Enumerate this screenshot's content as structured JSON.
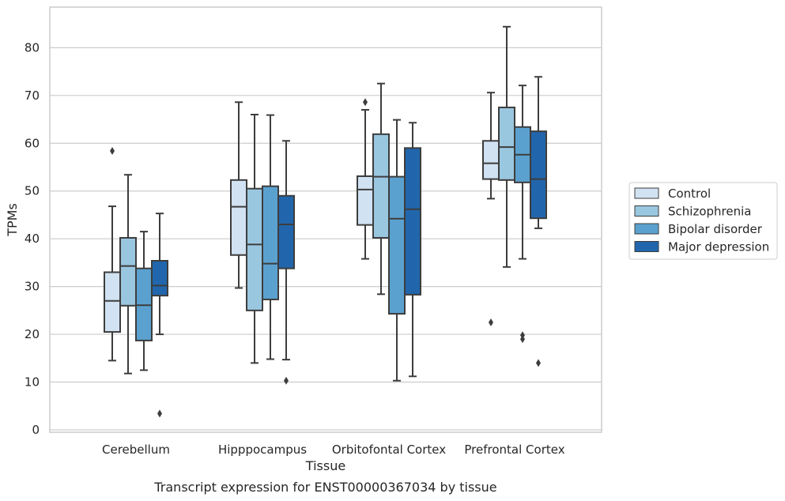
{
  "chart_data": {
    "type": "box",
    "title": "",
    "caption": "Transcript expression for ENST00000367034 by tissue",
    "xlabel": "Tissue",
    "ylabel": "TPMs",
    "ylim": [
      -0.5,
      88.5
    ],
    "yticks": [
      0,
      10,
      20,
      30,
      40,
      50,
      60,
      70,
      80
    ],
    "grid": "horizontal",
    "legend_position": "right",
    "categories": [
      "Cerebellum",
      "Hipppocampus",
      "Orbitofontal Cortex",
      "Prefrontal Cortex"
    ],
    "series": [
      {
        "name": "Control",
        "color": "#d1e2f2",
        "boxes": [
          {
            "whislo": 14.5,
            "q1": 20.5,
            "med": 27.0,
            "q3": 33.0,
            "whishi": 46.8,
            "fliers": [
              58.4
            ]
          },
          {
            "whislo": 29.7,
            "q1": 36.6,
            "med": 46.7,
            "q3": 52.3,
            "whishi": 68.6,
            "fliers": []
          },
          {
            "whislo": 35.8,
            "q1": 42.9,
            "med": 50.3,
            "q3": 53.1,
            "whishi": 67.0,
            "fliers": [
              68.6
            ]
          },
          {
            "whislo": 48.4,
            "q1": 52.5,
            "med": 55.8,
            "q3": 60.5,
            "whishi": 70.6,
            "fliers": [
              22.5
            ]
          }
        ]
      },
      {
        "name": "Schizophrenia",
        "color": "#9ac7e0",
        "boxes": [
          {
            "whislo": 11.8,
            "q1": 26.0,
            "med": 34.3,
            "q3": 40.2,
            "whishi": 53.4,
            "fliers": []
          },
          {
            "whislo": 14.0,
            "q1": 25.0,
            "med": 38.8,
            "q3": 50.5,
            "whishi": 66.0,
            "fliers": []
          },
          {
            "whislo": 28.4,
            "q1": 40.2,
            "med": 53.0,
            "q3": 61.9,
            "whishi": 72.5,
            "fliers": []
          },
          {
            "whislo": 34.1,
            "q1": 52.3,
            "med": 59.2,
            "q3": 67.5,
            "whishi": 84.4,
            "fliers": []
          }
        ]
      },
      {
        "name": "Bipolar disorder",
        "color": "#5ba1cf",
        "boxes": [
          {
            "whislo": 12.5,
            "q1": 18.7,
            "med": 26.1,
            "q3": 33.8,
            "whishi": 41.5,
            "fliers": []
          },
          {
            "whislo": 14.8,
            "q1": 27.3,
            "med": 34.8,
            "q3": 51.0,
            "whishi": 65.9,
            "fliers": []
          },
          {
            "whislo": 10.3,
            "q1": 24.3,
            "med": 44.2,
            "q3": 53.0,
            "whishi": 64.9,
            "fliers": []
          },
          {
            "whislo": 35.8,
            "q1": 51.8,
            "med": 57.6,
            "q3": 63.4,
            "whishi": 72.1,
            "fliers": [
              19.8,
              19.0
            ]
          }
        ]
      },
      {
        "name": "Major depression",
        "color": "#2166ac",
        "boxes": [
          {
            "whislo": 20.0,
            "q1": 28.1,
            "med": 30.2,
            "q3": 35.4,
            "whishi": 45.3,
            "fliers": [
              3.4
            ]
          },
          {
            "whislo": 14.7,
            "q1": 33.8,
            "med": 43.0,
            "q3": 49.0,
            "whishi": 60.5,
            "fliers": [
              10.3
            ]
          },
          {
            "whislo": 11.2,
            "q1": 28.3,
            "med": 46.2,
            "q3": 59.0,
            "whishi": 64.3,
            "fliers": []
          },
          {
            "whislo": 42.2,
            "q1": 44.3,
            "med": 52.5,
            "q3": 62.5,
            "whishi": 73.9,
            "fliers": [
              14.0
            ]
          }
        ]
      }
    ]
  }
}
